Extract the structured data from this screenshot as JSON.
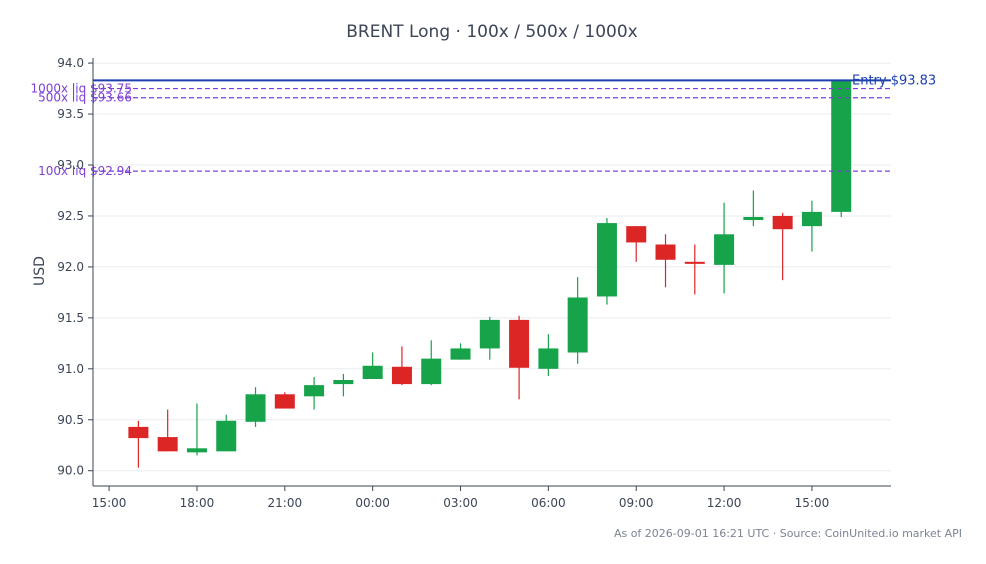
{
  "chart_data": {
    "type": "candlestick",
    "title": "BRENT Long · 100x / 500x / 1000x",
    "xlabel": "",
    "ylabel": "USD",
    "ylim": [
      89.85,
      94.05
    ],
    "y_ticks": [
      "90.0",
      "90.5",
      "91.0",
      "91.5",
      "92.0",
      "92.5",
      "93.0",
      "93.5",
      "94.0"
    ],
    "y_tick_values": [
      90.0,
      90.5,
      91.0,
      91.5,
      92.0,
      92.5,
      93.0,
      93.5,
      94.0
    ],
    "x_ticks": [
      "15:00",
      "18:00",
      "21:00",
      "00:00",
      "03:00",
      "06:00",
      "09:00",
      "12:00",
      "15:00"
    ],
    "x_tick_hours": [
      0,
      3,
      6,
      9,
      12,
      15,
      18,
      21,
      24
    ],
    "xlim_hours": [
      -0.55,
      26.7
    ],
    "grid": "horizontal",
    "up_color": "#16a34a",
    "down_color": "#dc2626",
    "candles": [
      {
        "t": 1,
        "o": 90.43,
        "h": 90.49,
        "l": 90.03,
        "c": 90.32
      },
      {
        "t": 2,
        "o": 90.33,
        "h": 90.6,
        "l": 90.19,
        "c": 90.19
      },
      {
        "t": 3,
        "o": 90.18,
        "h": 90.66,
        "l": 90.15,
        "c": 90.22
      },
      {
        "t": 4,
        "o": 90.19,
        "h": 90.55,
        "l": 90.19,
        "c": 90.49
      },
      {
        "t": 5,
        "o": 90.48,
        "h": 90.82,
        "l": 90.43,
        "c": 90.75
      },
      {
        "t": 6,
        "o": 90.75,
        "h": 90.77,
        "l": 90.61,
        "c": 90.61
      },
      {
        "t": 7,
        "o": 90.73,
        "h": 90.92,
        "l": 90.6,
        "c": 90.84
      },
      {
        "t": 8,
        "o": 90.85,
        "h": 90.95,
        "l": 90.73,
        "c": 90.89
      },
      {
        "t": 9,
        "o": 90.9,
        "h": 91.16,
        "l": 90.9,
        "c": 91.03
      },
      {
        "t": 10,
        "o": 91.02,
        "h": 91.22,
        "l": 90.84,
        "c": 90.85
      },
      {
        "t": 11,
        "o": 90.85,
        "h": 91.28,
        "l": 90.84,
        "c": 91.1
      },
      {
        "t": 12,
        "o": 91.09,
        "h": 91.25,
        "l": 91.09,
        "c": 91.2
      },
      {
        "t": 13,
        "o": 91.2,
        "h": 91.51,
        "l": 91.09,
        "c": 91.48
      },
      {
        "t": 14,
        "o": 91.48,
        "h": 91.52,
        "l": 90.7,
        "c": 91.01
      },
      {
        "t": 15,
        "o": 91.0,
        "h": 91.34,
        "l": 90.93,
        "c": 91.2
      },
      {
        "t": 16,
        "o": 91.16,
        "h": 91.9,
        "l": 91.05,
        "c": 91.7
      },
      {
        "t": 17,
        "o": 91.71,
        "h": 92.48,
        "l": 91.63,
        "c": 92.43
      },
      {
        "t": 18,
        "o": 92.4,
        "h": 92.4,
        "l": 92.05,
        "c": 92.24
      },
      {
        "t": 19,
        "o": 92.22,
        "h": 92.32,
        "l": 91.8,
        "c": 92.07
      },
      {
        "t": 20,
        "o": 92.05,
        "h": 92.22,
        "l": 91.73,
        "c": 92.03
      },
      {
        "t": 21,
        "o": 92.02,
        "h": 92.63,
        "l": 91.74,
        "c": 92.32
      },
      {
        "t": 22,
        "o": 92.46,
        "h": 92.75,
        "l": 92.4,
        "c": 92.49
      },
      {
        "t": 23,
        "o": 92.5,
        "h": 92.53,
        "l": 91.87,
        "c": 92.37
      },
      {
        "t": 24,
        "o": 92.4,
        "h": 92.65,
        "l": 92.15,
        "c": 92.54
      },
      {
        "t": 25,
        "o": 92.54,
        "h": 93.83,
        "l": 92.49,
        "c": 93.83
      }
    ],
    "lines": [
      {
        "label": "Entry $93.83",
        "value": 93.83,
        "style": "solid",
        "color": "#1e40af"
      },
      {
        "label": "1000x liq $93.75",
        "value": 93.75,
        "style": "dashed",
        "color": "#7e3fd8"
      },
      {
        "label": "500x liq $93.66",
        "value": 93.66,
        "style": "dashed",
        "color": "#7e3fd8"
      },
      {
        "label": "100x liq $92.94",
        "value": 92.94,
        "style": "dashed",
        "color": "#7e3fd8"
      }
    ]
  },
  "footer": "As of 2026-09-01 16:21 UTC · Source: CoinUnited.io market API"
}
